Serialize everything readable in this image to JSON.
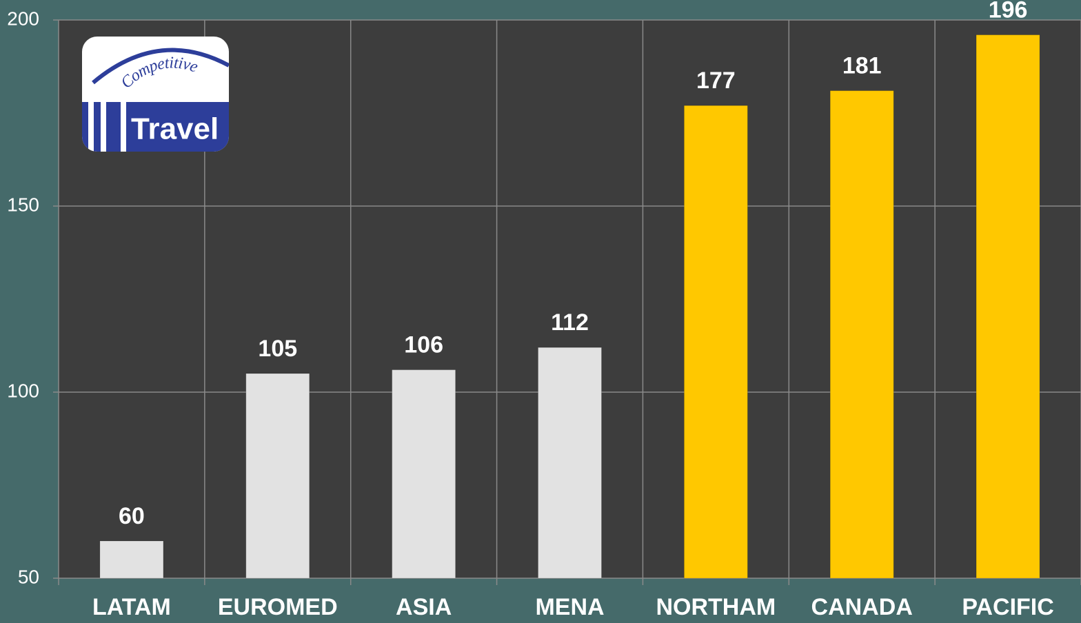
{
  "chart_data": {
    "type": "bar",
    "categories": [
      "LATAM",
      "EUROMED",
      "ASIA",
      "MENA",
      "NORTHAM",
      "CANADA",
      "PACIFIC"
    ],
    "values": [
      60,
      105,
      106,
      112,
      177,
      181,
      196
    ],
    "colors": [
      "#e2e2e2",
      "#e2e2e2",
      "#e2e2e2",
      "#e2e2e2",
      "#ffc800",
      "#ffc800",
      "#ffc800"
    ],
    "ylim": [
      50,
      200
    ],
    "yticks": [
      50,
      100,
      150,
      200
    ],
    "grid": true
  },
  "logo": {
    "top": "Competitive",
    "bottom": "Travel"
  }
}
